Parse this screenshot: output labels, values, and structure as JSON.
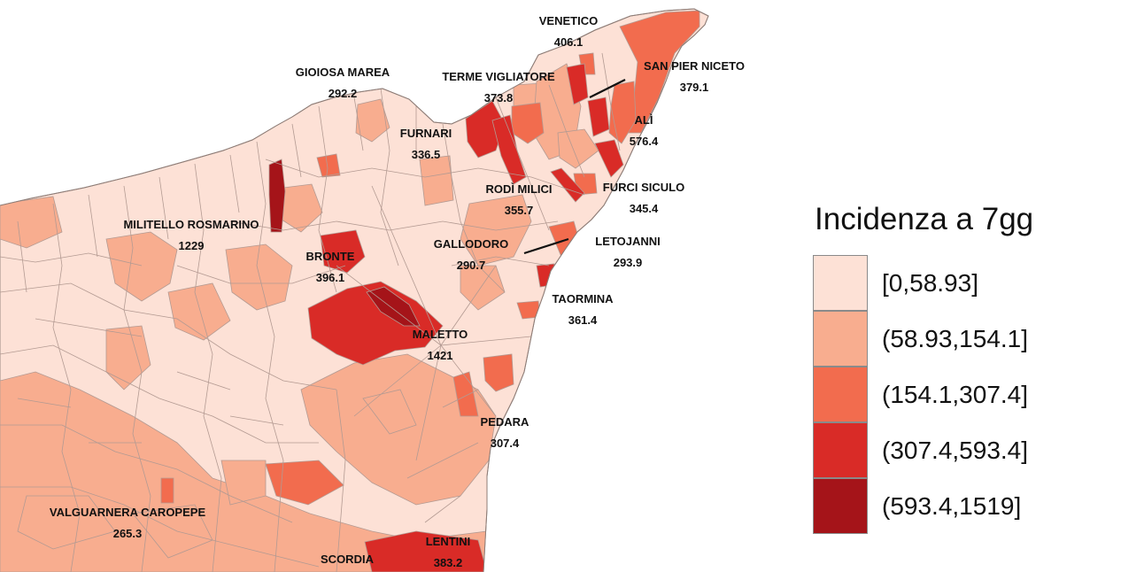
{
  "legend": {
    "title": "Incidenza a 7gg",
    "classes": [
      {
        "label": "[0,58.93]",
        "color": "#fde1d6"
      },
      {
        "label": "(58.93,154.1]",
        "color": "#f8ad8f"
      },
      {
        "label": "(154.1,307.4]",
        "color": "#f26c4e"
      },
      {
        "label": "(307.4,593.4]",
        "color": "#d92b27"
      },
      {
        "label": "(593.4,1519]",
        "color": "#a51419"
      }
    ]
  },
  "colors": {
    "sea": "#ffffff",
    "border": "#b39a92"
  },
  "towns": [
    {
      "name": "VENETICO",
      "value": "406.1"
    },
    {
      "name": "GIOIOSA MAREA",
      "value": "292.2"
    },
    {
      "name": "TERME VIGLIATORE",
      "value": "373.8"
    },
    {
      "name": "SAN PIER NICETO",
      "value": "379.1"
    },
    {
      "name": "ALÌ",
      "value": "576.4"
    },
    {
      "name": "FURNARI",
      "value": "336.5"
    },
    {
      "name": "RODÌ MILICI",
      "value": "355.7"
    },
    {
      "name": "FURCI SICULO",
      "value": "345.4"
    },
    {
      "name": "MILITELLO ROSMARINO",
      "value": "1229"
    },
    {
      "name": "GALLODORO",
      "value": "290.7"
    },
    {
      "name": "LETOJANNI",
      "value": "293.9"
    },
    {
      "name": "BRONTE",
      "value": "396.1"
    },
    {
      "name": "TAORMINA",
      "value": "361.4"
    },
    {
      "name": "MALETTO",
      "value": "1421"
    },
    {
      "name": "PEDARA",
      "value": "307.4"
    },
    {
      "name": "VALGUARNERA CAROPEPE",
      "value": "265.3"
    },
    {
      "name": "LENTINI",
      "value": "383.2"
    },
    {
      "name": "SCORDIA",
      "value": ""
    }
  ]
}
